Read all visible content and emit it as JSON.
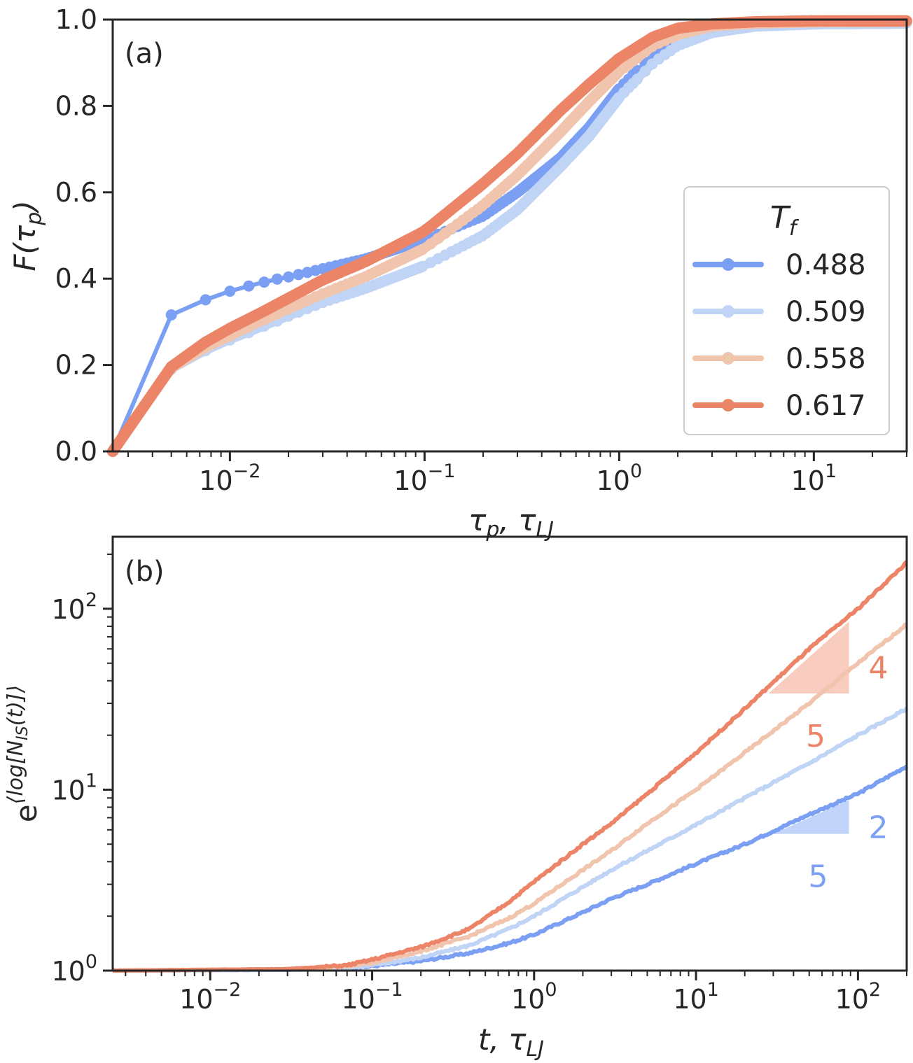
{
  "chart_data": [
    {
      "type": "line",
      "panel_label": "(a)",
      "x_scale": "log",
      "xlim": [
        0.0025,
        30
      ],
      "ylim": [
        0.0,
        1.0
      ],
      "xlabel": {
        "main": "τ",
        "sub": "p",
        "suffix": ", τ",
        "suffix_sub": "LJ"
      },
      "ylabel": {
        "main": "F(τ",
        "sub": "p",
        "end": ")"
      },
      "x_ticks": [
        {
          "value": 0.01,
          "base": "10",
          "exp": "−2"
        },
        {
          "value": 0.1,
          "base": "10",
          "exp": "−1"
        },
        {
          "value": 1,
          "base": "10",
          "exp": "0"
        },
        {
          "value": 10,
          "base": "10",
          "exp": "1"
        }
      ],
      "y_ticks": [
        {
          "value": 0.0,
          "label": "0.0"
        },
        {
          "value": 0.2,
          "label": "0.2"
        },
        {
          "value": 0.4,
          "label": "0.4"
        },
        {
          "value": 0.6,
          "label": "0.6"
        },
        {
          "value": 0.8,
          "label": "0.8"
        },
        {
          "value": 1.0,
          "label": "1.0"
        }
      ],
      "legend": {
        "title": "T",
        "title_sub": "f",
        "location": "center-right"
      },
      "series": [
        {
          "name": "0.488",
          "color": "#7b9ff3",
          "dx": 0.0025,
          "x": [
            0.0025,
            0.005,
            0.0075,
            0.01,
            0.0125,
            0.015,
            0.0175,
            0.02,
            0.03,
            0.05,
            0.1,
            0.2,
            0.3,
            0.5,
            0.7,
            1.0,
            1.5,
            2,
            3,
            5,
            10,
            30
          ],
          "y": [
            0.0,
            0.316,
            0.351,
            0.371,
            0.383,
            0.392,
            0.399,
            0.404,
            0.423,
            0.446,
            0.49,
            0.545,
            0.6,
            0.68,
            0.75,
            0.84,
            0.92,
            0.955,
            0.978,
            0.988,
            0.992,
            0.993
          ]
        },
        {
          "name": "0.509",
          "color": "#c0d4f5",
          "dx": 0.0025,
          "x": [
            0.0025,
            0.005,
            0.0075,
            0.01,
            0.0125,
            0.015,
            0.0175,
            0.02,
            0.03,
            0.05,
            0.1,
            0.2,
            0.3,
            0.5,
            0.7,
            1.0,
            1.5,
            2,
            3,
            5,
            10,
            30
          ],
          "y": [
            0.0,
            0.19,
            0.233,
            0.258,
            0.275,
            0.29,
            0.302,
            0.313,
            0.345,
            0.378,
            0.43,
            0.5,
            0.56,
            0.66,
            0.73,
            0.82,
            0.9,
            0.94,
            0.97,
            0.985,
            0.99,
            0.992
          ]
        },
        {
          "name": "0.558",
          "color": "#f1c4ad",
          "dx": 0.0025,
          "x": [
            0.0025,
            0.005,
            0.0075,
            0.01,
            0.0125,
            0.015,
            0.0175,
            0.02,
            0.03,
            0.05,
            0.1,
            0.2,
            0.3,
            0.5,
            0.7,
            1.0,
            1.5,
            2,
            3,
            5,
            10,
            30
          ],
          "y": [
            0.0,
            0.192,
            0.24,
            0.267,
            0.288,
            0.305,
            0.318,
            0.33,
            0.365,
            0.405,
            0.47,
            0.57,
            0.64,
            0.74,
            0.81,
            0.88,
            0.94,
            0.965,
            0.985,
            0.992,
            0.995,
            0.996
          ]
        },
        {
          "name": "0.617",
          "color": "#ec8467",
          "dx": 0.0025,
          "x": [
            0.0025,
            0.005,
            0.0075,
            0.01,
            0.0125,
            0.015,
            0.0175,
            0.02,
            0.03,
            0.05,
            0.1,
            0.2,
            0.3,
            0.5,
            0.7,
            1.0,
            1.5,
            2,
            3,
            5,
            10,
            30
          ],
          "y": [
            0.0,
            0.196,
            0.253,
            0.285,
            0.307,
            0.325,
            0.341,
            0.355,
            0.397,
            0.44,
            0.51,
            0.62,
            0.69,
            0.79,
            0.85,
            0.91,
            0.96,
            0.98,
            0.99,
            0.995,
            0.997,
            0.997
          ]
        }
      ]
    },
    {
      "type": "line",
      "panel_label": "(b)",
      "x_scale": "log",
      "y_scale": "log",
      "xlim": [
        0.0025,
        200
      ],
      "ylim": [
        1,
        250
      ],
      "xlabel": {
        "main": "t",
        "suffix": ", τ",
        "suffix_sub": "LJ"
      },
      "ylabel": {
        "main": "e",
        "sup": "⟨log[N",
        "sup_sub": "IS",
        "sup_end": "(t)]⟩"
      },
      "x_ticks": [
        {
          "value": 0.01,
          "base": "10",
          "exp": "−2"
        },
        {
          "value": 0.1,
          "base": "10",
          "exp": "−1"
        },
        {
          "value": 1,
          "base": "10",
          "exp": "0"
        },
        {
          "value": 10,
          "base": "10",
          "exp": "1"
        },
        {
          "value": 100,
          "base": "10",
          "exp": "2"
        }
      ],
      "y_ticks": [
        {
          "value": 1,
          "base": "10",
          "exp": "0"
        },
        {
          "value": 10,
          "base": "10",
          "exp": "1"
        },
        {
          "value": 100,
          "base": "10",
          "exp": "2"
        }
      ],
      "series": [
        {
          "name": "0.488",
          "color": "#7b9ff3",
          "x": [
            0.0025,
            0.03,
            0.07,
            0.1,
            0.2,
            0.4,
            0.7,
            1.0,
            2,
            3,
            5,
            10,
            20,
            50,
            100,
            200
          ],
          "y": [
            1.0,
            1.01,
            1.03,
            1.06,
            1.13,
            1.25,
            1.42,
            1.58,
            2.1,
            2.5,
            3.0,
            3.9,
            5.0,
            7.3,
            9.5,
            13.5
          ]
        },
        {
          "name": "0.509",
          "color": "#c0d4f5",
          "x": [
            0.0025,
            0.03,
            0.07,
            0.1,
            0.2,
            0.4,
            0.7,
            1.0,
            2,
            3,
            5,
            10,
            20,
            50,
            100,
            200
          ],
          "y": [
            1.0,
            1.01,
            1.04,
            1.07,
            1.18,
            1.38,
            1.7,
            2.0,
            2.9,
            3.6,
            4.6,
            6.4,
            9.0,
            14.0,
            20.0,
            28.0
          ]
        },
        {
          "name": "0.558",
          "color": "#f1c4ad",
          "x": [
            0.0025,
            0.03,
            0.07,
            0.1,
            0.2,
            0.4,
            0.7,
            1.0,
            2,
            3,
            5,
            10,
            20,
            50,
            100,
            200
          ],
          "y": [
            1.0,
            1.02,
            1.06,
            1.1,
            1.28,
            1.55,
            1.95,
            2.35,
            3.6,
            4.6,
            6.5,
            10.0,
            16.0,
            30.0,
            50.0,
            82.0
          ]
        },
        {
          "name": "0.617",
          "color": "#ec8467",
          "x": [
            0.0025,
            0.03,
            0.07,
            0.1,
            0.2,
            0.4,
            0.7,
            1.0,
            2,
            3,
            5,
            10,
            20,
            50,
            100,
            200
          ],
          "y": [
            1.0,
            1.02,
            1.07,
            1.15,
            1.35,
            1.7,
            2.4,
            3.1,
            5.0,
            6.5,
            9.5,
            16.0,
            28.0,
            60.0,
            100.0,
            180.0
          ]
        }
      ],
      "slope_triangles": [
        {
          "color": "#f4a38c",
          "text_color": "#ec8467",
          "x0": 28,
          "x1": 88,
          "y_base": 34,
          "slope": 0.8,
          "rise_label": "4",
          "run_label": "5"
        },
        {
          "color": "#8fb0f5",
          "text_color": "#7b9ff3",
          "x0": 30,
          "x1": 88,
          "y_base": 5.7,
          "slope": 0.4,
          "rise_label": "2",
          "run_label": "5"
        }
      ]
    }
  ]
}
